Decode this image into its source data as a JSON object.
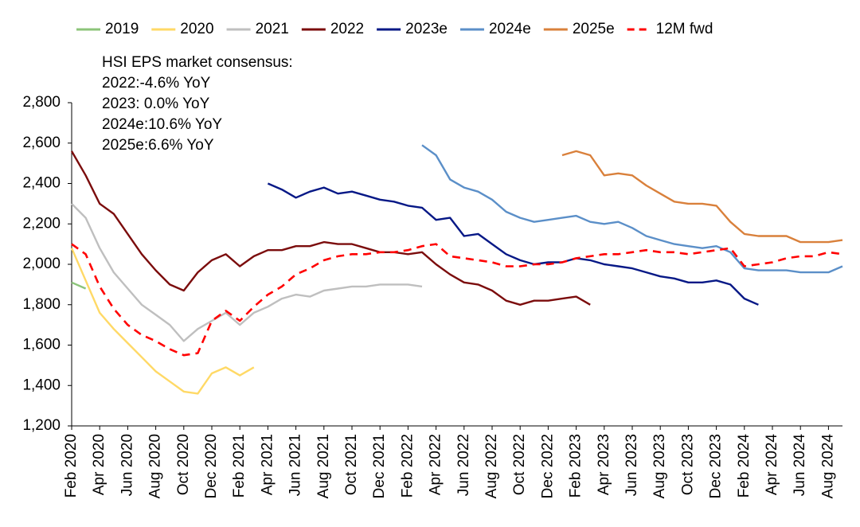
{
  "chart_data": {
    "type": "line",
    "annotations": [
      "HSI EPS market consensus:",
      "2022:-4.6% YoY",
      "2023: 0.0%  YoY",
      "2024e:10.6% YoY",
      "2025e:6.6% YoY"
    ],
    "x": [
      "2020-02",
      "2020-03",
      "2020-04",
      "2020-05",
      "2020-06",
      "2020-07",
      "2020-08",
      "2020-09",
      "2020-10",
      "2020-11",
      "2020-12",
      "2021-01",
      "2021-02",
      "2021-03",
      "2021-04",
      "2021-05",
      "2021-06",
      "2021-07",
      "2021-08",
      "2021-09",
      "2021-10",
      "2021-11",
      "2021-12",
      "2022-01",
      "2022-02",
      "2022-03",
      "2022-04",
      "2022-05",
      "2022-06",
      "2022-07",
      "2022-08",
      "2022-09",
      "2022-10",
      "2022-11",
      "2022-12",
      "2023-01",
      "2023-02",
      "2023-03",
      "2023-04",
      "2023-05",
      "2023-06",
      "2023-07",
      "2023-08",
      "2023-09",
      "2023-10",
      "2023-11",
      "2023-12",
      "2024-01",
      "2024-02",
      "2024-03",
      "2024-04",
      "2024-05",
      "2024-06",
      "2024-07",
      "2024-08",
      "2024-09"
    ],
    "series": [
      {
        "name": "2019",
        "color": "#8cc47a",
        "dashed": false,
        "values": [
          1910,
          1880,
          null,
          null,
          null,
          null,
          null,
          null,
          null,
          null,
          null,
          null,
          null,
          null,
          null,
          null,
          null,
          null,
          null,
          null,
          null,
          null,
          null,
          null,
          null,
          null,
          null,
          null,
          null,
          null,
          null,
          null,
          null,
          null,
          null,
          null,
          null,
          null,
          null,
          null,
          null,
          null,
          null,
          null,
          null,
          null,
          null,
          null,
          null,
          null,
          null,
          null,
          null,
          null,
          null,
          null
        ]
      },
      {
        "name": "2020",
        "color": "#ffd966",
        "dashed": false,
        "values": [
          2080,
          1920,
          1760,
          1680,
          1610,
          1540,
          1470,
          1420,
          1370,
          1360,
          1460,
          1490,
          1450,
          1490,
          null,
          null,
          null,
          null,
          null,
          null,
          null,
          null,
          null,
          null,
          null,
          null,
          null,
          null,
          null,
          null,
          null,
          null,
          null,
          null,
          null,
          null,
          null,
          null,
          null,
          null,
          null,
          null,
          null,
          null,
          null,
          null,
          null,
          null,
          null,
          null,
          null,
          null,
          null,
          null,
          null,
          null
        ]
      },
      {
        "name": "2021",
        "color": "#bfbfbf",
        "dashed": false,
        "values": [
          2300,
          2230,
          2080,
          1960,
          1880,
          1800,
          1750,
          1700,
          1620,
          1680,
          1720,
          1760,
          1700,
          1760,
          1790,
          1830,
          1850,
          1840,
          1870,
          1880,
          1890,
          1890,
          1900,
          1900,
          1900,
          1890,
          null,
          null,
          null,
          null,
          null,
          null,
          null,
          null,
          null,
          null,
          null,
          null,
          null,
          null,
          null,
          null,
          null,
          null,
          null,
          null,
          null,
          null,
          null,
          null,
          null,
          null,
          null,
          null,
          null,
          null
        ]
      },
      {
        "name": "2022",
        "color": "#7b0c0c",
        "dashed": false,
        "values": [
          2560,
          2440,
          2300,
          2250,
          2150,
          2050,
          1970,
          1900,
          1870,
          1960,
          2020,
          2050,
          1990,
          2040,
          2070,
          2070,
          2090,
          2090,
          2110,
          2100,
          2100,
          2080,
          2060,
          2060,
          2050,
          2060,
          2000,
          1950,
          1910,
          1900,
          1870,
          1820,
          1800,
          1820,
          1820,
          1830,
          1840,
          1800,
          null,
          null,
          null,
          null,
          null,
          null,
          null,
          null,
          null,
          null,
          null,
          null,
          null,
          null,
          null,
          null,
          null,
          null
        ]
      },
      {
        "name": "2023e",
        "color": "#061886",
        "dashed": false,
        "values": [
          null,
          null,
          null,
          null,
          null,
          null,
          null,
          null,
          null,
          null,
          null,
          null,
          null,
          null,
          2400,
          2370,
          2330,
          2360,
          2380,
          2350,
          2360,
          2340,
          2320,
          2310,
          2290,
          2280,
          2220,
          2230,
          2140,
          2150,
          2100,
          2050,
          2020,
          2000,
          2010,
          2010,
          2030,
          2020,
          2000,
          1990,
          1980,
          1960,
          1940,
          1930,
          1910,
          1910,
          1920,
          1900,
          1830,
          1800,
          null,
          null,
          null,
          null,
          null,
          null
        ]
      },
      {
        "name": "2024e",
        "color": "#5b8fc8",
        "dashed": false,
        "values": [
          null,
          null,
          null,
          null,
          null,
          null,
          null,
          null,
          null,
          null,
          null,
          null,
          null,
          null,
          null,
          null,
          null,
          null,
          null,
          null,
          null,
          null,
          null,
          null,
          null,
          2590,
          2540,
          2420,
          2380,
          2360,
          2320,
          2260,
          2230,
          2210,
          2220,
          2230,
          2240,
          2210,
          2200,
          2210,
          2180,
          2140,
          2120,
          2100,
          2090,
          2080,
          2090,
          2060,
          1980,
          1970,
          1970,
          1970,
          1960,
          1960,
          1960,
          1990
        ]
      },
      {
        "name": "2025e",
        "color": "#d9803b",
        "dashed": false,
        "values": [
          null,
          null,
          null,
          null,
          null,
          null,
          null,
          null,
          null,
          null,
          null,
          null,
          null,
          null,
          null,
          null,
          null,
          null,
          null,
          null,
          null,
          null,
          null,
          null,
          null,
          null,
          null,
          null,
          null,
          null,
          null,
          null,
          null,
          null,
          null,
          2540,
          2560,
          2540,
          2440,
          2450,
          2440,
          2390,
          2350,
          2310,
          2300,
          2300,
          2290,
          2210,
          2150,
          2140,
          2140,
          2140,
          2110,
          2110,
          2110,
          2120
        ]
      },
      {
        "name": "12M fwd",
        "color": "#ff0000",
        "dashed": true,
        "values": [
          2100,
          2050,
          1890,
          1780,
          1700,
          1650,
          1620,
          1580,
          1550,
          1560,
          1720,
          1770,
          1720,
          1790,
          1850,
          1890,
          1950,
          1980,
          2020,
          2040,
          2050,
          2050,
          2060,
          2060,
          2070,
          2090,
          2100,
          2040,
          2030,
          2020,
          2010,
          1990,
          1990,
          2000,
          2000,
          2010,
          2030,
          2040,
          2050,
          2050,
          2060,
          2070,
          2060,
          2060,
          2050,
          2060,
          2070,
          2080,
          1990,
          2000,
          2010,
          2030,
          2040,
          2040,
          2060,
          2050
        ]
      }
    ],
    "ylim": [
      1200,
      2800
    ],
    "yticks": [
      {
        "value": 1200,
        "label": "1,200"
      },
      {
        "value": 1400,
        "label": "1,400"
      },
      {
        "value": 1600,
        "label": "1,600"
      },
      {
        "value": 1800,
        "label": "1,800"
      },
      {
        "value": 2000,
        "label": "2,000"
      },
      {
        "value": 2200,
        "label": "2,200"
      },
      {
        "value": 2400,
        "label": "2,400"
      },
      {
        "value": 2600,
        "label": "2,600"
      },
      {
        "value": 2800,
        "label": "2,800"
      }
    ],
    "xticks": [
      {
        "value": "2020-02",
        "label": "Feb 2020"
      },
      {
        "value": "2020-04",
        "label": "Apr 2020"
      },
      {
        "value": "2020-06",
        "label": "Jun 2020"
      },
      {
        "value": "2020-08",
        "label": "Aug 2020"
      },
      {
        "value": "2020-10",
        "label": "Oct 2020"
      },
      {
        "value": "2020-12",
        "label": "Dec 2020"
      },
      {
        "value": "2021-02",
        "label": "Feb 2021"
      },
      {
        "value": "2021-04",
        "label": "Apr 2021"
      },
      {
        "value": "2021-06",
        "label": "Jun 2021"
      },
      {
        "value": "2021-08",
        "label": "Aug 2021"
      },
      {
        "value": "2021-10",
        "label": "Oct 2021"
      },
      {
        "value": "2021-12",
        "label": "Dec 2021"
      },
      {
        "value": "2022-02",
        "label": "Feb 2022"
      },
      {
        "value": "2022-04",
        "label": "Apr 2022"
      },
      {
        "value": "2022-06",
        "label": "Jun 2022"
      },
      {
        "value": "2022-08",
        "label": "Aug 2022"
      },
      {
        "value": "2022-10",
        "label": "Oct 2022"
      },
      {
        "value": "2022-12",
        "label": "Dec 2022"
      },
      {
        "value": "2023-02",
        "label": "Feb 2023"
      },
      {
        "value": "2023-04",
        "label": "Apr 2023"
      },
      {
        "value": "2023-06",
        "label": "Jun 2023"
      },
      {
        "value": "2023-08",
        "label": "Aug 2023"
      },
      {
        "value": "2023-10",
        "label": "Oct 2023"
      },
      {
        "value": "2023-12",
        "label": "Dec 2023"
      },
      {
        "value": "2024-02",
        "label": "Feb 2024"
      },
      {
        "value": "2024-04",
        "label": "Apr 2024"
      },
      {
        "value": "2024-06",
        "label": "Jun 2024"
      },
      {
        "value": "2024-08",
        "label": "Aug 2024"
      }
    ],
    "grid": false
  }
}
